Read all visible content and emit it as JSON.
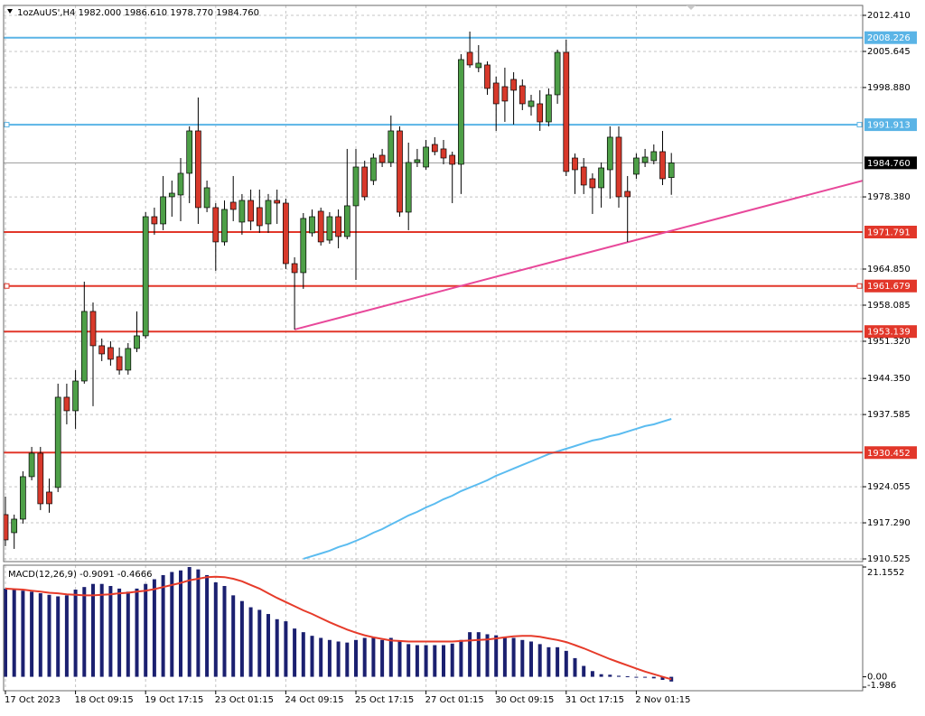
{
  "chart_data": [
    {
      "type": "candlestick",
      "title": "1ozAuUS',H4  1982.000 1986.610 1978.770 1984.760",
      "categories": [
        "17 Oct 2023",
        null,
        null,
        null,
        null,
        null,
        null,
        null,
        "18 Oct 09:15",
        null,
        null,
        null,
        null,
        null,
        null,
        null,
        "19 Oct 17:15",
        null,
        null,
        null,
        null,
        null,
        null,
        null,
        "23 Oct 01:15",
        null,
        null,
        null,
        null,
        null,
        null,
        null,
        "24 Oct 09:15",
        null,
        null,
        null,
        null,
        null,
        null,
        null,
        "25 Oct 17:15",
        null,
        null,
        null,
        null,
        null,
        null,
        null,
        "27 Oct 01:15",
        null,
        null,
        null,
        null,
        null,
        null,
        null,
        "30 Oct 09:15",
        null,
        null,
        null,
        null,
        null,
        null,
        null,
        "31 Oct 17:15",
        null,
        null,
        null,
        null,
        null,
        null,
        null,
        "2 Nov 01:15",
        null,
        null,
        null,
        null
      ],
      "open": [
        1918.83,
        1915.44,
        1917.98,
        1925.94,
        1930.34,
        1923.06,
        1923.91,
        1940.83,
        1938.29,
        1943.87,
        1956.91,
        1950.48,
        1950.14,
        1948.44,
        1945.91,
        1949.97,
        1952.34,
        1974.67,
        1973.32,
        1978.4,
        1978.74,
        1982.8,
        1990.75,
        1976.37,
        1976.37,
        1969.94,
        1977.38,
        1973.66,
        1977.72,
        1976.37,
        1973.32,
        1977.72,
        1977.21,
        1965.87,
        1964.18,
        1971.63,
        1975.69,
        1970.27,
        1974.67,
        1970.95,
        1976.71,
        1983.98,
        1981.44,
        1986.18,
        1984.83,
        1990.75,
        1975.52,
        1984.83,
        1983.98,
        1988.21,
        1987.37,
        1986.18,
        1984.49,
        2005.47,
        2002.6,
        2003.11,
        1999.72,
        1999.04,
        2000.4,
        1999.21,
        1995.32,
        1995.83,
        1992.44,
        1997.52,
        2005.47,
        1985.67,
        1983.98,
        1981.78,
        1980.09,
        1983.47,
        1989.57,
        1979.41,
        1982.63,
        1984.83,
        1985.17,
        1986.86,
        1982.0
      ],
      "high": [
        1922.21,
        1918.83,
        1926.95,
        1931.52,
        1931.52,
        1925.6,
        1943.37,
        1943.37,
        1945.91,
        1962.49,
        1958.6,
        1951.83,
        1951.32,
        1950.14,
        1950.98,
        1956.91,
        1975.52,
        1976.37,
        1982.29,
        1981.44,
        1985.67,
        1991.6,
        1997.01,
        1981.44,
        1977.21,
        1977.72,
        1982.29,
        1978.91,
        1979.75,
        1979.75,
        1978.91,
        1979.75,
        1978.06,
        1967.06,
        1975.35,
        1976.03,
        1976.37,
        1975.52,
        1976.03,
        1987.37,
        1987.37,
        1985.17,
        1986.52,
        1987.37,
        1993.63,
        1991.6,
        1988.55,
        1987.37,
        1989.06,
        1989.57,
        1989.06,
        1986.86,
        2005.14,
        2009.37,
        2006.83,
        2003.78,
        2000.91,
        2002.6,
        2001.75,
        2000.4,
        1997.52,
        1998.37,
        1998.71,
        2005.98,
        2007.84,
        1986.52,
        1985.67,
        1982.8,
        1984.83,
        1991.6,
        1991.6,
        1982.29,
        1986.52,
        1987.37,
        1988.21,
        1990.75,
        1986.61
      ],
      "low": [
        1912.91,
        1912.4,
        1917.14,
        1925.26,
        1919.68,
        1919.17,
        1923.06,
        1935.75,
        1934.91,
        1943.37,
        1939.14,
        1947.6,
        1946.75,
        1945.06,
        1945.06,
        1949.29,
        1951.83,
        1971.29,
        1972.14,
        1974.67,
        1973.83,
        1977.21,
        1973.32,
        1975.52,
        1964.52,
        1969.26,
        1973.83,
        1971.29,
        1972.14,
        1971.63,
        1971.63,
        1973.32,
        1964.86,
        1953.52,
        1961.14,
        1970.95,
        1969.26,
        1969.6,
        1968.75,
        1970.44,
        1962.83,
        1977.72,
        1980.6,
        1983.98,
        1983.98,
        1974.67,
        1972.14,
        1983.98,
        1983.47,
        1986.18,
        1984.49,
        1977.21,
        1978.91,
        2002.6,
        2001.75,
        1997.52,
        1990.75,
        1992.44,
        1991.94,
        1994.64,
        1993.63,
        1990.75,
        1991.6,
        1995.83,
        1982.29,
        1978.91,
        1978.91,
        1975.18,
        1976.37,
        1978.06,
        1976.37,
        1969.94,
        1981.78,
        1983.98,
        1984.49,
        1980.6,
        1978.77
      ],
      "close": [
        1914.09,
        1917.98,
        1925.94,
        1930.34,
        1920.86,
        1920.86,
        1940.83,
        1938.29,
        1943.87,
        1956.91,
        1950.48,
        1948.95,
        1947.94,
        1945.91,
        1949.97,
        1952.34,
        1974.67,
        1973.32,
        1978.4,
        1979.07,
        1982.8,
        1990.75,
        1976.37,
        1980.09,
        1969.94,
        1976.03,
        1976.03,
        1977.72,
        1973.83,
        1972.98,
        1977.72,
        1977.21,
        1965.87,
        1964.18,
        1974.34,
        1974.67,
        1969.94,
        1974.67,
        1970.95,
        1976.71,
        1983.98,
        1978.4,
        1985.67,
        1984.83,
        1990.75,
        1975.52,
        1984.83,
        1985.34,
        1987.71,
        1986.86,
        1985.67,
        1984.49,
        2004.12,
        2003.11,
        2003.44,
        1998.71,
        1995.83,
        1996.34,
        1998.37,
        1995.83,
        1996.34,
        1992.44,
        1997.52,
        2005.47,
        1983.14,
        1983.47,
        1980.6,
        1980.09,
        1983.81,
        1989.57,
        1978.4,
        1978.4,
        1985.67,
        1985.84,
        1986.86,
        1981.78,
        1984.76
      ],
      "up_color": "#4d9f47",
      "down_color": "#d8392b",
      "ylim": [
        1910.02,
        2013.93
      ],
      "yticks": [
        {
          "value": 2012.41,
          "label": "2012.410"
        },
        2005.645,
        {
          "value": 1998.88,
          "label": "1998.880"
        },
        {
          "value": 1978.38,
          "label": "1978.380"
        },
        {
          "value": 1964.85,
          "label": "1964.850"
        },
        1958.085,
        {
          "value": 1951.32,
          "label": "1951.320"
        },
        {
          "value": 1944.35,
          "label": "1944.350"
        },
        1937.585,
        1924.055,
        {
          "value": 1917.29,
          "label": "1917.290"
        },
        1910.525
      ],
      "grid": true,
      "levels": [
        {
          "value": 2008.226,
          "color": "#5ab4e6"
        },
        {
          "value": 1991.913,
          "color": "#5ab4e6",
          "selected": true
        },
        {
          "value": 1971.791,
          "color": "#e2372a"
        },
        {
          "value": 1961.679,
          "color": "#e2372a",
          "selected": true
        },
        {
          "value": 1953.139,
          "color": "#e2372a"
        },
        {
          "value": 1930.452,
          "color": "#e2372a"
        }
      ],
      "last": {
        "value": 1984.76,
        "label": "1984.760"
      },
      "trendline": {
        "color": "#e8489a",
        "ray": true,
        "points": [
          {
            "index": 33,
            "value": 1953.52
          },
          {
            "index": 76,
            "value": 1972.03
          }
        ]
      },
      "ma": {
        "color": "#5bbcf0",
        "values": [
          null,
          null,
          null,
          null,
          null,
          null,
          null,
          null,
          null,
          null,
          null,
          null,
          null,
          null,
          null,
          null,
          null,
          null,
          null,
          null,
          null,
          null,
          null,
          null,
          null,
          null,
          null,
          null,
          null,
          null,
          null,
          null,
          null,
          null,
          1910.54,
          1911.05,
          1911.55,
          1912.06,
          1912.74,
          1913.25,
          1913.92,
          1914.6,
          1915.44,
          1916.12,
          1916.97,
          1917.81,
          1918.66,
          1919.34,
          1920.18,
          1920.86,
          1921.71,
          1922.38,
          1923.23,
          1923.91,
          1924.58,
          1925.26,
          1926.11,
          1926.78,
          1927.46,
          1928.14,
          1928.81,
          1929.49,
          1930.17,
          1930.67,
          1931.18,
          1931.69,
          1932.2,
          1932.71,
          1933.04,
          1933.55,
          1933.89,
          1934.4,
          1934.91,
          1935.42,
          1935.75,
          1936.26,
          1936.76
        ]
      }
    },
    {
      "type": "macd",
      "title": "MACD(12,26,9) -0.9091 -0.4666",
      "values": [
        17.0,
        16.8,
        16.6,
        16.4,
        16.1,
        15.8,
        15.5,
        15.7,
        16.8,
        17.3,
        17.9,
        17.9,
        17.5,
        17.0,
        16.4,
        17.0,
        17.9,
        18.8,
        19.6,
        20.2,
        20.5,
        21.1552,
        20.7,
        19.6,
        18.2,
        17.5,
        15.7,
        14.6,
        13.4,
        12.9,
        12.1,
        11.1,
        10.7,
        9.3,
        8.6,
        7.9,
        7.5,
        7.1,
        6.8,
        6.6,
        7.1,
        7.5,
        7.5,
        7.1,
        7.5,
        6.8,
        6.3,
        6.1,
        6.1,
        6.1,
        6.1,
        6.4,
        7.1,
        8.6,
        8.6,
        8.2,
        8.0,
        7.7,
        7.5,
        7.1,
        6.8,
        6.3,
        5.7,
        5.7,
        5.0,
        3.6,
        2.1,
        1.1,
        0.5,
        0.4,
        0.2,
        0.1,
        0.0,
        -0.1,
        -0.3,
        -0.6,
        -0.9091
      ],
      "color": "#1b2070",
      "signal": [
        17.0,
        16.9,
        16.8,
        16.6,
        16.4,
        16.2,
        16.1,
        15.9,
        15.8,
        15.7,
        15.7,
        15.8,
        15.9,
        16.1,
        16.2,
        16.4,
        16.6,
        16.9,
        17.3,
        17.7,
        18.1,
        18.6,
        18.9,
        19.2,
        19.3,
        19.2,
        18.9,
        18.4,
        17.7,
        17.0,
        16.1,
        15.2,
        14.4,
        13.6,
        12.8,
        12.1,
        11.3,
        10.5,
        9.8,
        9.1,
        8.5,
        8.0,
        7.6,
        7.3,
        7.0,
        6.9,
        6.8,
        6.8,
        6.8,
        6.8,
        6.8,
        6.8,
        6.9,
        7.0,
        7.1,
        7.2,
        7.4,
        7.6,
        7.8,
        7.9,
        7.9,
        7.7,
        7.4,
        7.1,
        6.7,
        6.1,
        5.5,
        4.8,
        4.1,
        3.4,
        2.8,
        2.2,
        1.6,
        1.0,
        0.5,
        0.0,
        -0.4666
      ],
      "signal_color": "#e63b2a",
      "ylim": [
        -1.986,
        21.1552
      ],
      "yticks": [
        21.1552,
        {
          "value": 0,
          "label": "0.00"
        },
        -1.986
      ]
    }
  ]
}
